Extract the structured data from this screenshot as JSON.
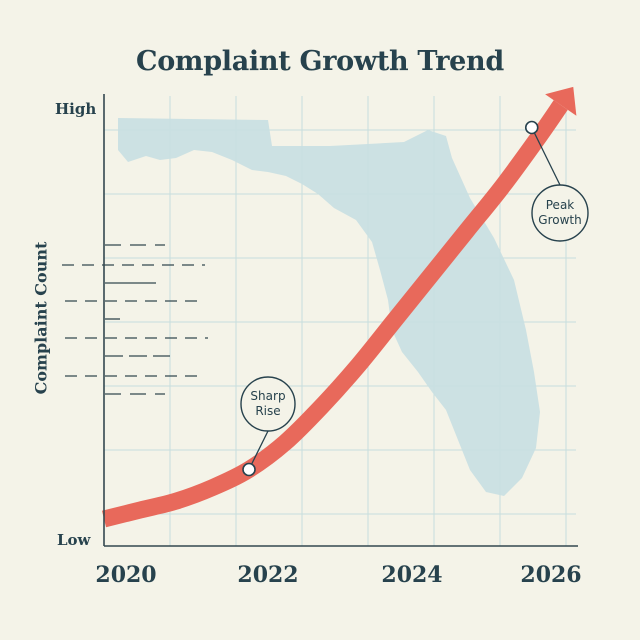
{
  "chart_data": {
    "type": "line",
    "title": "Complaint Growth Trend",
    "xlabel": "",
    "ylabel": "Complaint Count",
    "x_ticks": [
      "2020",
      "2022",
      "2024",
      "2026"
    ],
    "y_ticks": [
      "Low",
      "High"
    ],
    "xlim": [
      2020,
      2026.4
    ],
    "ylim": [
      0,
      1
    ],
    "grid": true,
    "series": [
      {
        "color": "#e8695b",
        "x": [
          2020,
          2020.5,
          2021,
          2021.5,
          2022,
          2022.5,
          2023,
          2023.5,
          2024,
          2024.5,
          2025,
          2025.5,
          2026,
          2026.3
        ],
        "y": [
          0.06,
          0.08,
          0.1,
          0.13,
          0.17,
          0.23,
          0.31,
          0.4,
          0.5,
          0.6,
          0.7,
          0.8,
          0.91,
          0.98
        ]
      }
    ],
    "annotations": [
      {
        "text": "Sharp\nRise",
        "x": 2022,
        "y": 0.17
      },
      {
        "text": "Peak\nGrowth",
        "x": 2025.9,
        "y": 0.93
      }
    ],
    "background": "map of Florida"
  },
  "colors": {
    "background": "#f4f3e8",
    "grid": "#c6dede",
    "map": "#c8dfe2",
    "text": "#27424d",
    "curve": "#e8695b"
  }
}
